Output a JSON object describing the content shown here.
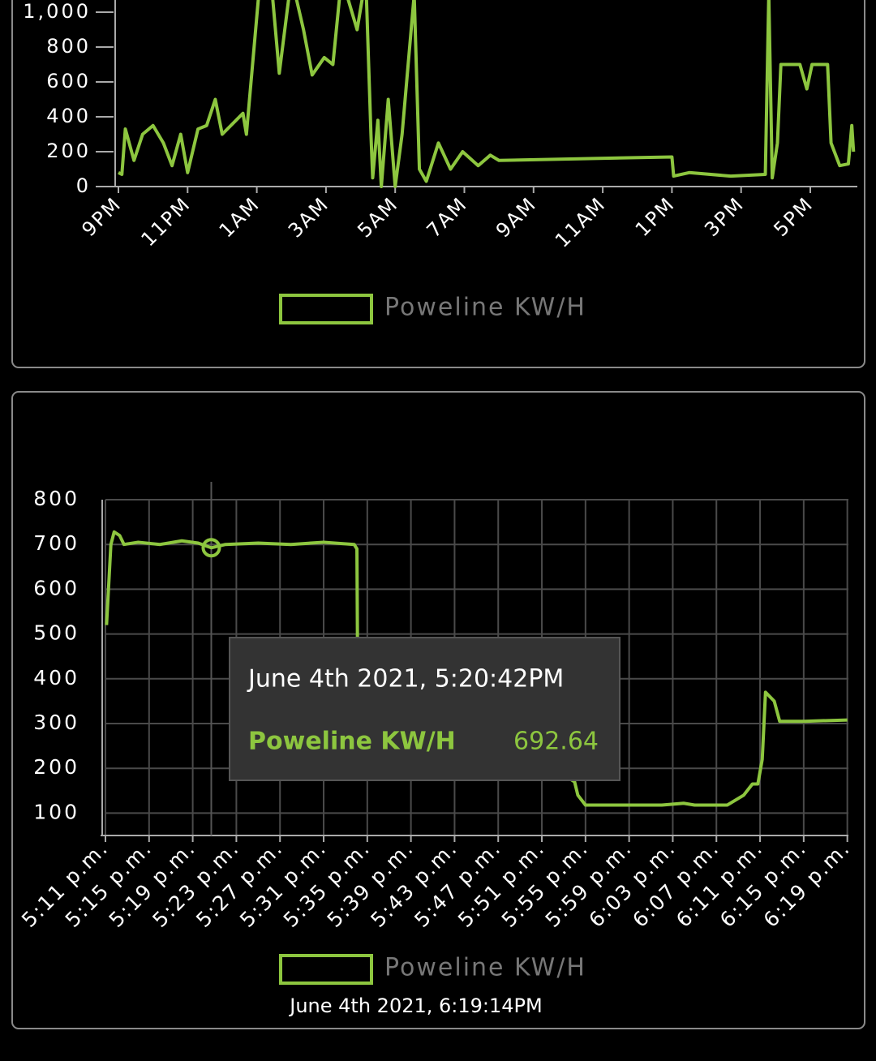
{
  "chart_data": [
    {
      "type": "line",
      "x": [
        21.0,
        21.1,
        21.2,
        21.45,
        21.7,
        22.0,
        22.3,
        22.55,
        22.8,
        23.0,
        23.3,
        23.55,
        23.8,
        24.0,
        24.25,
        24.6,
        24.7,
        25.1,
        25.45,
        25.65,
        26.0,
        26.35,
        26.6,
        26.95,
        27.2,
        27.45,
        27.9,
        28.15,
        28.3,
        28.35,
        28.5,
        28.6,
        28.8,
        29.0,
        29.2,
        29.55,
        29.7,
        29.9,
        30.25,
        30.6,
        30.95,
        31.4,
        31.75,
        32.0,
        37.0,
        37.05,
        37.5,
        38.7,
        39.7,
        39.8,
        39.9,
        40.05,
        40.15,
        40.7,
        40.9,
        41.05,
        41.5,
        41.6,
        41.85,
        42.1,
        42.2,
        42.25
      ],
      "series": [
        {
          "name": "Poweline KW/H",
          "color": "#8dc63f",
          "values": [
            80,
            70,
            330,
            150,
            300,
            350,
            250,
            120,
            300,
            80,
            330,
            350,
            500,
            300,
            350,
            420,
            300,
            1200,
            1100,
            650,
            1200,
            900,
            640,
            740,
            700,
            1200,
            900,
            1200,
            300,
            50,
            380,
            0,
            500,
            0,
            300,
            1100,
            100,
            30,
            250,
            100,
            200,
            120,
            180,
            150,
            170,
            60,
            80,
            60,
            70,
            1100,
            50,
            250,
            700,
            700,
            560,
            700,
            700,
            250,
            120,
            130,
            350,
            200
          ]
        }
      ],
      "xlim": [
        21,
        42.36
      ],
      "xticks": [
        {
          "value": 21,
          "label": "9PM"
        },
        {
          "value": 23,
          "label": "11PM"
        },
        {
          "value": 25,
          "label": "1AM"
        },
        {
          "value": 27,
          "label": "3AM"
        },
        {
          "value": 29,
          "label": "5AM"
        },
        {
          "value": 31,
          "label": "7AM"
        },
        {
          "value": 33,
          "label": "9AM"
        },
        {
          "value": 35,
          "label": "11AM"
        },
        {
          "value": 37,
          "label": "1PM"
        },
        {
          "value": 39,
          "label": "3PM"
        },
        {
          "value": 41,
          "label": "5PM"
        }
      ],
      "ylim": [
        0,
        1070
      ],
      "yticks": [
        0,
        200,
        400,
        600,
        800,
        {
          "value": 1000,
          "label": "1,000"
        }
      ],
      "grid": false
    },
    {
      "type": "line",
      "x": [
        11.1,
        11.5,
        11.8,
        12.3,
        12.7,
        14,
        16,
        18,
        19.5,
        20.7,
        22,
        25,
        28,
        31,
        33.8,
        34.05,
        34.1,
        54.0,
        54.3,
        55,
        58,
        62,
        64,
        65,
        68,
        69.5,
        70.3,
        70.8,
        71.2,
        71.5,
        72.3,
        72.8,
        75,
        79
      ],
      "series": [
        {
          "name": "Poweline KW/H",
          "color": "#8dc63f",
          "values": [
            520,
            700,
            728,
            720,
            700,
            705,
            700,
            708,
            703,
            692.64,
            700,
            703,
            700,
            705,
            700,
            690,
            480,
            170,
            140,
            118,
            118,
            118,
            122,
            118,
            118,
            140,
            165,
            165,
            220,
            370,
            350,
            305,
            305,
            308
          ]
        }
      ],
      "xlim": [
        11,
        79.1
      ],
      "xticks": [
        {
          "value": 11,
          "label": "5:11 p.m."
        },
        {
          "value": 15,
          "label": "5:15 p.m."
        },
        {
          "value": 19,
          "label": "5:19 p.m."
        },
        {
          "value": 23,
          "label": "5:23 p.m."
        },
        {
          "value": 27,
          "label": "5:27 p.m."
        },
        {
          "value": 31,
          "label": "5:31 p.m."
        },
        {
          "value": 35,
          "label": "5:35 p.m."
        },
        {
          "value": 39,
          "label": "5:39 p.m."
        },
        {
          "value": 43,
          "label": "5:43 p.m."
        },
        {
          "value": 47,
          "label": "5:47 p.m."
        },
        {
          "value": 51,
          "label": "5:51 p.m."
        },
        {
          "value": 55,
          "label": "5:55 p.m."
        },
        {
          "value": 59,
          "label": "5:59 p.m."
        },
        {
          "value": 63,
          "label": "6:03 p.m."
        },
        {
          "value": 67,
          "label": "6:07 p.m."
        },
        {
          "value": 71,
          "label": "6:11 p.m."
        },
        {
          "value": 75,
          "label": "6:15 p.m."
        },
        {
          "value": 79,
          "label": "6:19 p.m."
        }
      ],
      "ylim": [
        50,
        800
      ],
      "yticks": [
        100,
        200,
        300,
        400,
        500,
        600,
        700,
        800
      ],
      "grid": true,
      "tooltip": {
        "title": "June 4th 2021, 5:20:42PM",
        "value": 692.64
      },
      "caption": "June 4th 2021, 6:19:14PM"
    }
  ]
}
